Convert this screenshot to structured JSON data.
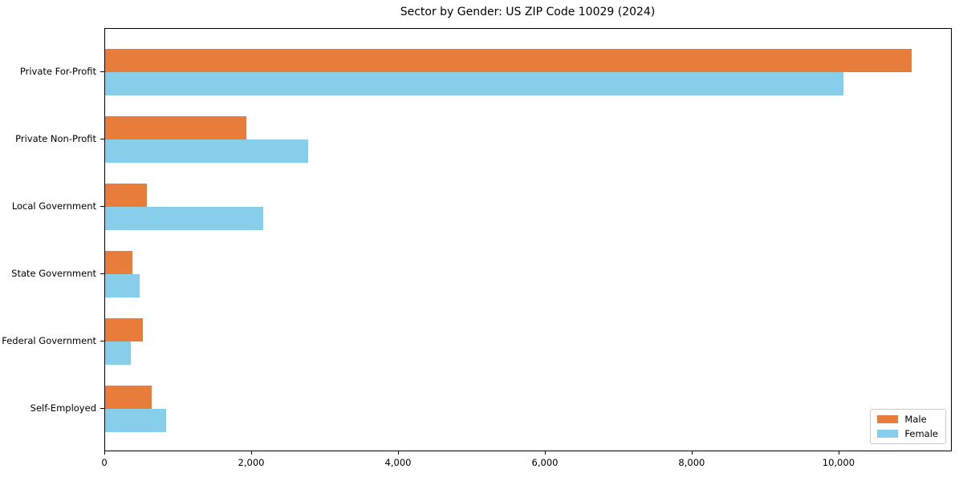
{
  "chart_data": {
    "type": "bar",
    "orientation": "horizontal",
    "title": "Sector by Gender: US ZIP Code 10029 (2024)",
    "xlabel": "",
    "ylabel": "",
    "categories": [
      "Private For-Profit",
      "Private Non-Profit",
      "Local Government",
      "State Government",
      "Federal Government",
      "Self-Employed"
    ],
    "series": [
      {
        "name": "Male",
        "color": "#e87d3b",
        "values": [
          10980,
          1920,
          570,
          370,
          510,
          630
        ]
      },
      {
        "name": "Female",
        "color": "#87ceeb",
        "values": [
          10050,
          2770,
          2150,
          470,
          350,
          830
        ]
      }
    ],
    "xlim": [
      0,
      11520
    ],
    "x_ticks": [
      0,
      2000,
      4000,
      6000,
      8000,
      10000
    ],
    "x_tick_labels": [
      "0",
      "2,000",
      "4,000",
      "6,000",
      "8,000",
      "10,000"
    ],
    "legend_position": "lower right",
    "grid": false,
    "colors": {
      "male": "#e87d3b",
      "female": "#87ceeb",
      "spine": "#000000",
      "legend_border": "#cccccc",
      "background": "#ffffff"
    }
  }
}
